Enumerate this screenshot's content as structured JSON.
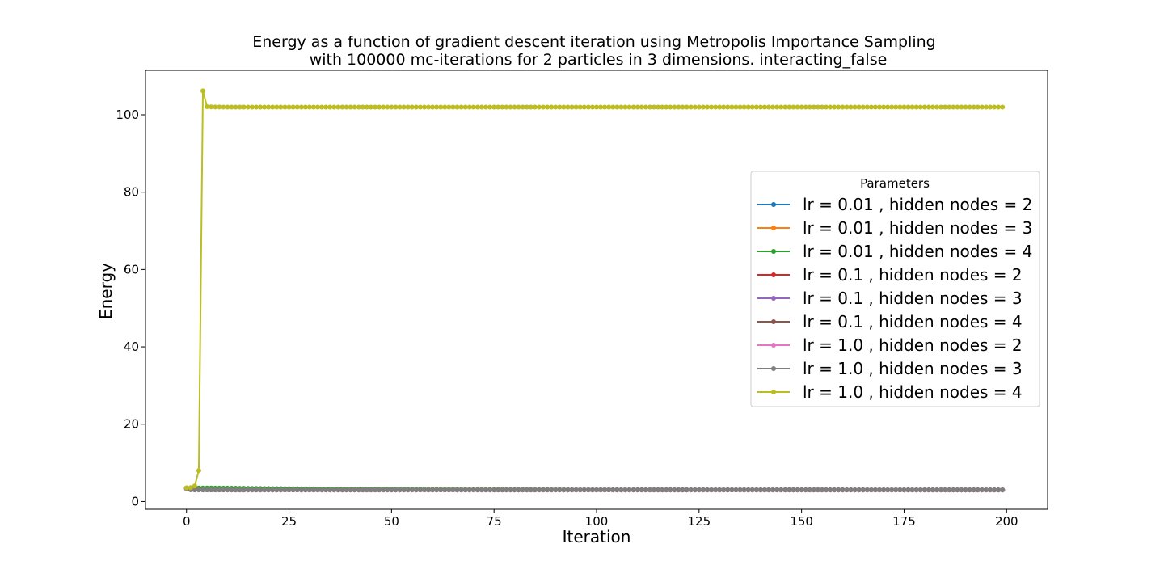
{
  "chart_data": {
    "type": "line",
    "title": "Energy as a function of gradient descent iteration using Metropolis Importance Sampling",
    "subtitle": "with 100000 mc-iterations for 2 particles in 3 dimensions. interacting_false",
    "xlabel": "Iteration",
    "ylabel": "Energy",
    "xlim": [
      -10,
      210
    ],
    "ylim": [
      -2,
      111.5
    ],
    "xticks": [
      0,
      25,
      50,
      75,
      100,
      125,
      150,
      175,
      200
    ],
    "yticks": [
      0,
      20,
      40,
      60,
      80,
      100
    ],
    "grid": false,
    "legend": {
      "title": "Parameters",
      "placement": "center-right"
    },
    "x": {
      "start": 0,
      "end": 199,
      "step": 1
    },
    "series": [
      {
        "name": "lr = 0.01 , hidden nodes = 2",
        "color": "#1f77b4",
        "values_head": [
          3.4,
          3.42,
          3.42,
          3.41,
          3.41,
          3.4,
          3.4,
          3.39,
          3.39,
          3.38
        ],
        "decay_to": 3.0,
        "decay_rate": 0.03
      },
      {
        "name": "lr = 0.01 , hidden nodes = 3",
        "color": "#ff7f0e",
        "values_head": [
          3.45,
          3.44,
          3.44,
          3.43,
          3.43,
          3.42,
          3.42,
          3.41,
          3.4,
          3.4
        ],
        "decay_to": 3.0,
        "decay_rate": 0.03
      },
      {
        "name": "lr = 0.01 , hidden nodes = 4",
        "color": "#2ca02c",
        "values_head": [
          3.5,
          3.5,
          3.5,
          3.49,
          3.49,
          3.48,
          3.48,
          3.47,
          3.47,
          3.46
        ],
        "decay_to": 3.0,
        "decay_rate": 0.025
      },
      {
        "name": "lr = 0.1 , hidden nodes = 2",
        "color": "#d62728",
        "values_head": [
          3.3,
          3.2,
          3.1,
          3.05,
          3.02
        ],
        "decay_to": 3.0,
        "decay_rate": 0.3
      },
      {
        "name": "lr = 0.1 , hidden nodes = 3",
        "color": "#9467bd",
        "values_head": [
          3.35,
          3.25,
          3.12,
          3.06,
          3.03
        ],
        "decay_to": 3.0,
        "decay_rate": 0.3
      },
      {
        "name": "lr = 0.1 , hidden nodes = 4",
        "color": "#8c564b",
        "values_head": [
          3.4,
          3.28,
          3.15,
          3.07,
          3.03
        ],
        "decay_to": 3.0,
        "decay_rate": 0.3
      },
      {
        "name": "lr = 1.0 , hidden nodes = 2",
        "color": "#e377c2",
        "values_head": [
          3.3,
          3.05,
          3.0,
          3.0
        ],
        "decay_to": 3.0,
        "decay_rate": 1.0
      },
      {
        "name": "lr = 1.0 , hidden nodes = 3",
        "color": "#7f7f7f",
        "values_head": [
          3.35,
          3.05,
          3.0,
          3.0
        ],
        "decay_to": 3.0,
        "decay_rate": 1.0
      },
      {
        "name": "lr = 1.0 , hidden nodes = 4",
        "color": "#bcbd22",
        "values_head": [
          3.5,
          3.6,
          4.0,
          8.0,
          106.2,
          102.1
        ],
        "decay_to": 102.0,
        "decay_rate": 1.0
      }
    ]
  }
}
